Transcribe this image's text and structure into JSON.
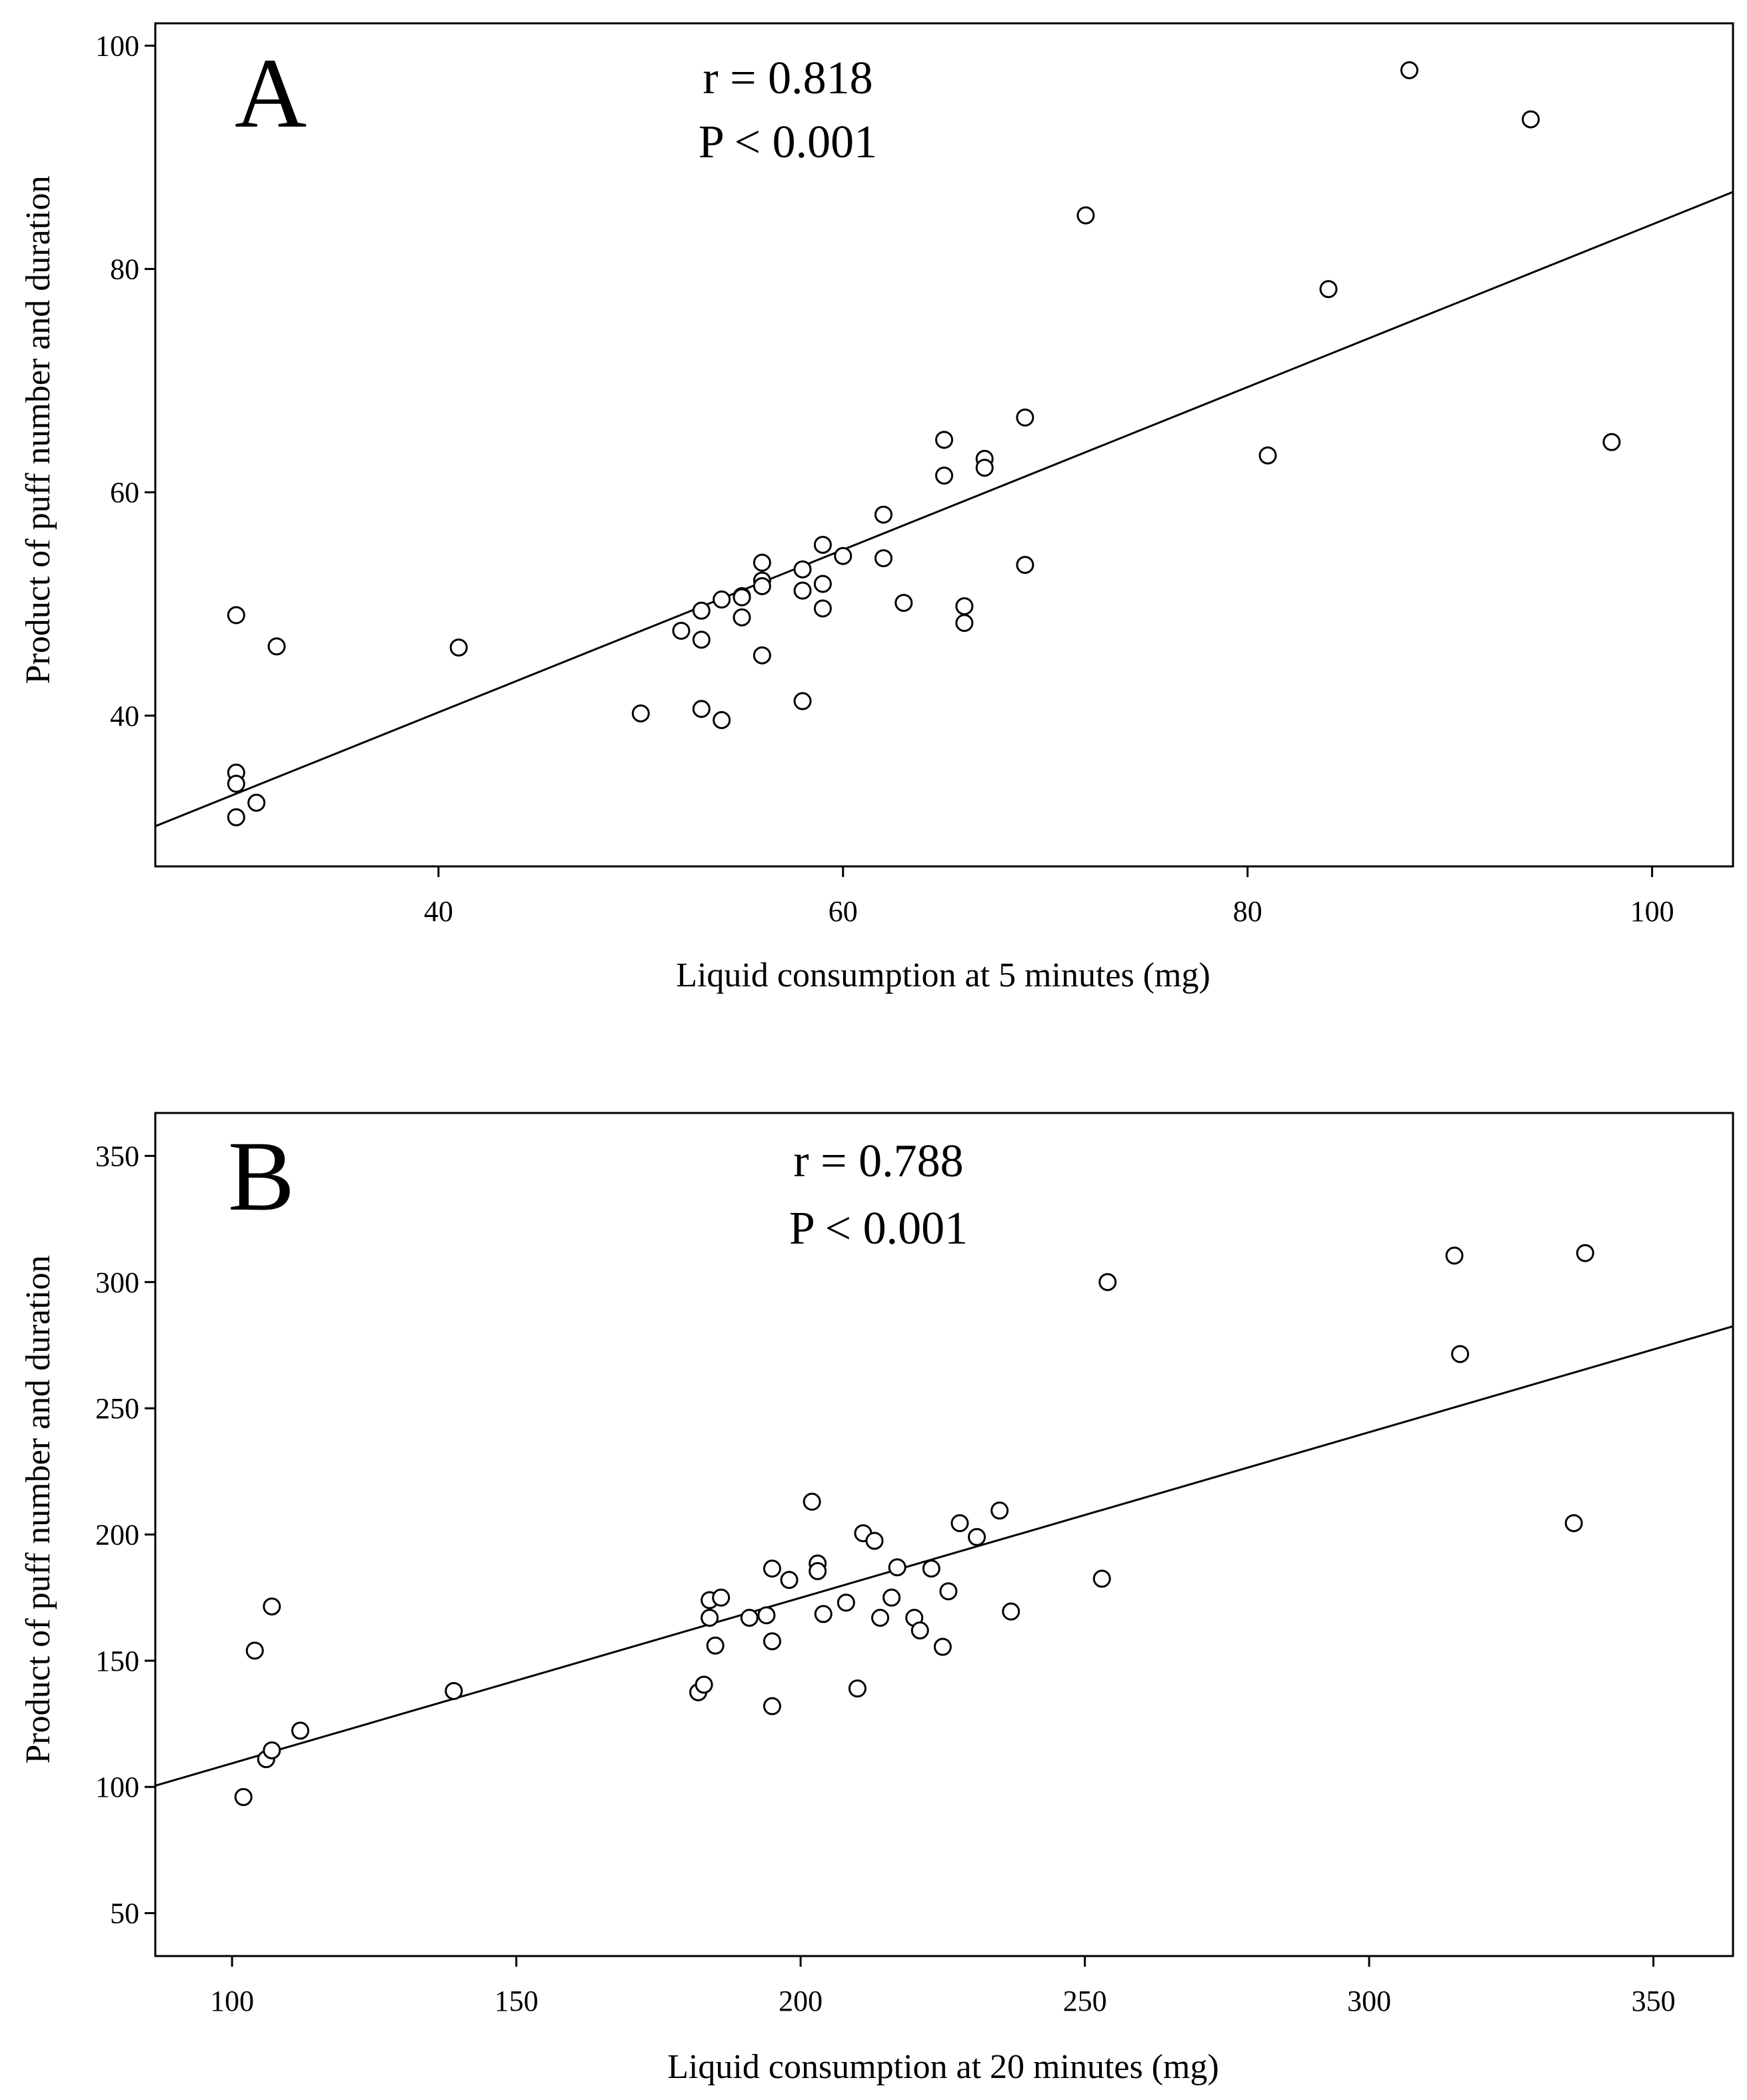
{
  "chart_data": [
    {
      "type": "scatter",
      "panel_label": "A",
      "stats": {
        "r_text": "r = 0.818",
        "p_text": "P < 0.001"
      },
      "xlabel": "Liquid consumption at 5 minutes (mg)",
      "ylabel": "Product of puff number and duration",
      "xlim": [
        26,
        104
      ],
      "ylim": [
        26.5,
        102
      ],
      "xticks": [
        40,
        60,
        80,
        100
      ],
      "yticks": [
        40,
        60,
        80,
        100
      ],
      "x_tick_labels": [
        "40",
        "60",
        "80",
        "100"
      ],
      "y_tick_labels": [
        "40",
        "60",
        "80",
        "100"
      ],
      "regression_line": {
        "x": [
          26,
          104
        ],
        "y": [
          30.1,
          86.9
        ]
      },
      "points": [
        [
          30,
          49
        ],
        [
          30,
          34.9
        ],
        [
          30,
          33.9
        ],
        [
          30,
          30.9
        ],
        [
          31,
          32.2
        ],
        [
          32,
          46.2
        ],
        [
          41,
          46.1
        ],
        [
          50,
          40.2
        ],
        [
          52,
          47.6
        ],
        [
          53,
          49.4
        ],
        [
          53,
          46.8
        ],
        [
          53,
          40.6
        ],
        [
          54,
          50.4
        ],
        [
          54,
          39.6
        ],
        [
          55,
          50.7
        ],
        [
          55,
          50.6
        ],
        [
          55,
          48.8
        ],
        [
          56,
          53.7
        ],
        [
          56,
          52.1
        ],
        [
          56,
          51.6
        ],
        [
          56,
          45.4
        ],
        [
          58,
          53.1
        ],
        [
          58,
          51.2
        ],
        [
          58,
          41.3
        ],
        [
          59,
          55.3
        ],
        [
          59,
          51.8
        ],
        [
          59,
          49.6
        ],
        [
          60,
          54.3
        ],
        [
          62,
          58
        ],
        [
          62,
          54.1
        ],
        [
          63,
          50.1
        ],
        [
          65,
          64.7
        ],
        [
          65,
          61.5
        ],
        [
          66,
          49.8
        ],
        [
          66,
          48.3
        ],
        [
          67,
          63
        ],
        [
          67,
          62.2
        ],
        [
          69,
          66.7
        ],
        [
          69,
          53.5
        ],
        [
          72,
          84.8
        ],
        [
          81,
          63.3
        ],
        [
          84,
          78.2
        ],
        [
          88,
          97.8
        ],
        [
          94,
          93.4
        ],
        [
          98,
          64.5
        ]
      ]
    },
    {
      "type": "scatter",
      "panel_label": "B",
      "stats": {
        "r_text": "r = 0.788",
        "p_text": "P < 0.001"
      },
      "xlabel": "Liquid consumption at 20 minutes (mg)",
      "ylabel": "Product of puff number and duration",
      "xlim": [
        86.5,
        364
      ],
      "ylim": [
        33,
        367
      ],
      "xticks": [
        100,
        150,
        200,
        250,
        300,
        350
      ],
      "yticks": [
        50,
        100,
        150,
        200,
        250,
        300,
        350
      ],
      "x_tick_labels": [
        "100",
        "150",
        "200",
        "250",
        "300",
        "350"
      ],
      "y_tick_labels": [
        "50",
        "100",
        "150",
        "200",
        "250",
        "300",
        "350"
      ],
      "regression_line": {
        "x": [
          86.5,
          364
        ],
        "y": [
          100.5,
          282.5
        ]
      },
      "points": [
        [
          102,
          96
        ],
        [
          104,
          154
        ],
        [
          106,
          111
        ],
        [
          107,
          114.5
        ],
        [
          107,
          171.5
        ],
        [
          112,
          122.3
        ],
        [
          139,
          138
        ],
        [
          182,
          137.5
        ],
        [
          183,
          140.5
        ],
        [
          184,
          174
        ],
        [
          184,
          167
        ],
        [
          185,
          156
        ],
        [
          186,
          175
        ],
        [
          191,
          167
        ],
        [
          194,
          168
        ],
        [
          195,
          186.5
        ],
        [
          195,
          157.7
        ],
        [
          195,
          132
        ],
        [
          198,
          182
        ],
        [
          202,
          213
        ],
        [
          203,
          188.5
        ],
        [
          203,
          185.5
        ],
        [
          204,
          168.5
        ],
        [
          208,
          173
        ],
        [
          210,
          139
        ],
        [
          211,
          200.5
        ],
        [
          213,
          197.5
        ],
        [
          214,
          167
        ],
        [
          216,
          175
        ],
        [
          217,
          187
        ],
        [
          220,
          167
        ],
        [
          221,
          162
        ],
        [
          223,
          186.5
        ],
        [
          225,
          155.5
        ],
        [
          226,
          177.5
        ],
        [
          228,
          204.5
        ],
        [
          231,
          199
        ],
        [
          235,
          209.5
        ],
        [
          237,
          169.5
        ],
        [
          253,
          182.5
        ],
        [
          254,
          300
        ],
        [
          315,
          310.5
        ],
        [
          316,
          271.5
        ],
        [
          336,
          204.5
        ],
        [
          338,
          311.5
        ]
      ]
    }
  ]
}
